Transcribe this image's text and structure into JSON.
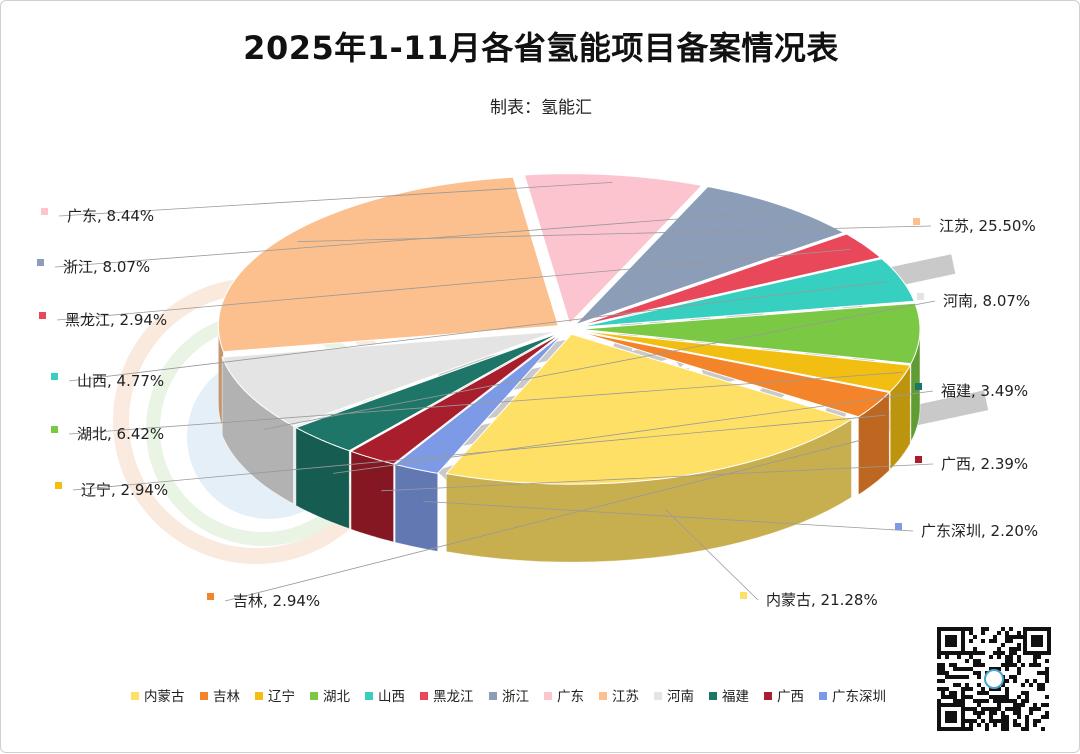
{
  "header": {
    "title": "2025年1-11月各省氢能项目备案情况表",
    "subtitle": "制表：氢能汇"
  },
  "watermark": {
    "text": "氢能汇",
    "color": "#9e9e9e"
  },
  "chart_data": {
    "type": "pie",
    "title": "2025年1-11月各省氢能项目备案情况表",
    "subtitle": "制表：氢能汇",
    "style": "3d-exploded",
    "legend_position": "bottom",
    "data_labels": "category, percent",
    "slices": [
      {
        "name": "内蒙古",
        "value": 21.28,
        "label": "内蒙古, 21.28%",
        "color": "#FFE066"
      },
      {
        "name": "吉林",
        "value": 2.94,
        "label": "吉林, 2.94%",
        "color": "#F4842A"
      },
      {
        "name": "辽宁",
        "value": 2.94,
        "label": "辽宁, 2.94%",
        "color": "#F2BE12"
      },
      {
        "name": "湖北",
        "value": 6.42,
        "label": "湖北, 6.42%",
        "color": "#7AC843"
      },
      {
        "name": "山西",
        "value": 4.77,
        "label": "山西, 4.77%",
        "color": "#36CFC0"
      },
      {
        "name": "黑龙江",
        "value": 2.94,
        "label": "黑龙江, 2.94%",
        "color": "#E8485A"
      },
      {
        "name": "浙江",
        "value": 8.07,
        "label": "浙江, 8.07%",
        "color": "#8C9DB8"
      },
      {
        "name": "广东",
        "value": 8.44,
        "label": "广东, 8.44%",
        "color": "#FCC4CF"
      },
      {
        "name": "江苏",
        "value": 25.5,
        "label": "江苏, 25.50%",
        "color": "#FBC08E"
      },
      {
        "name": "河南",
        "value": 8.07,
        "label": "河南, 8.07%",
        "color": "#E4E4E4"
      },
      {
        "name": "福建",
        "value": 3.49,
        "label": "福建, 3.49%",
        "color": "#1E7668"
      },
      {
        "name": "广西",
        "value": 2.39,
        "label": "广西, 2.39%",
        "color": "#A91E2C"
      },
      {
        "name": "广东深圳",
        "value": 2.2,
        "label": "广东深圳, 2.20%",
        "color": "#7C9AE6"
      }
    ]
  },
  "qr_code": {
    "name": "qr-code"
  }
}
